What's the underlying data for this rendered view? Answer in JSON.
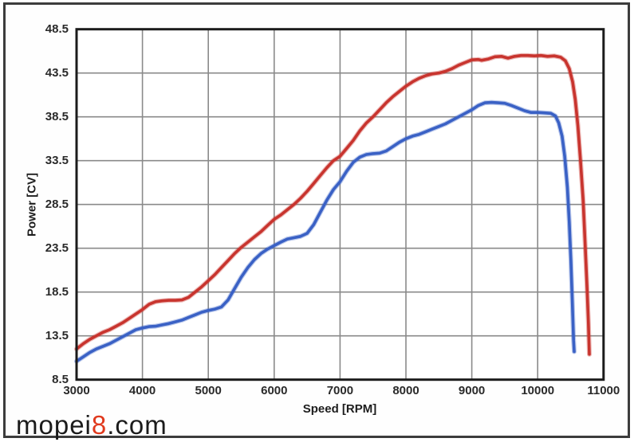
{
  "watermark": {
    "prefix": "mopei",
    "highlight": "8",
    "suffix": ".com",
    "highlight_color": "#e0391d",
    "text_color": "#1b1b1b"
  },
  "colors": {
    "grid": "#8a8a8a",
    "plot_border": "#1b1b1b",
    "outer_frame": "#3c3c3c",
    "background": "#ffffff",
    "red_series": "#c8342e",
    "blue_series": "#3a61c5"
  },
  "chart_data": {
    "type": "line",
    "title": "",
    "xlabel": "Speed [RPM]",
    "ylabel": "Power [CV]",
    "xlim": [
      3000,
      11000
    ],
    "ylim": [
      8.5,
      48.5
    ],
    "x_ticks": [
      3000,
      4000,
      5000,
      6000,
      7000,
      8000,
      9000,
      10000,
      11000
    ],
    "y_ticks": [
      8.5,
      13.5,
      18.5,
      23.5,
      28.5,
      33.5,
      38.5,
      43.5,
      48.5
    ],
    "grid": true,
    "legend_position": "none",
    "series": [
      {
        "name": "power-red",
        "color": "#c8342e",
        "peak": {
          "rpm": 9900,
          "cv": 45.5
        },
        "points": [
          [
            3000,
            12.0
          ],
          [
            3100,
            12.6
          ],
          [
            3200,
            13.1
          ],
          [
            3300,
            13.5
          ],
          [
            3400,
            13.9
          ],
          [
            3500,
            14.2
          ],
          [
            3600,
            14.6
          ],
          [
            3700,
            15.0
          ],
          [
            3800,
            15.5
          ],
          [
            3900,
            16.0
          ],
          [
            4000,
            16.5
          ],
          [
            4100,
            17.1
          ],
          [
            4200,
            17.4
          ],
          [
            4300,
            17.5
          ],
          [
            4400,
            17.55
          ],
          [
            4500,
            17.55
          ],
          [
            4600,
            17.6
          ],
          [
            4700,
            17.9
          ],
          [
            4800,
            18.5
          ],
          [
            4900,
            19.1
          ],
          [
            5000,
            19.8
          ],
          [
            5100,
            20.5
          ],
          [
            5200,
            21.3
          ],
          [
            5300,
            22.1
          ],
          [
            5400,
            22.9
          ],
          [
            5500,
            23.6
          ],
          [
            5600,
            24.2
          ],
          [
            5700,
            24.8
          ],
          [
            5800,
            25.4
          ],
          [
            5900,
            26.1
          ],
          [
            6000,
            26.8
          ],
          [
            6100,
            27.3
          ],
          [
            6200,
            27.9
          ],
          [
            6300,
            28.5
          ],
          [
            6400,
            29.2
          ],
          [
            6500,
            30.0
          ],
          [
            6600,
            30.9
          ],
          [
            6700,
            31.8
          ],
          [
            6800,
            32.7
          ],
          [
            6900,
            33.5
          ],
          [
            7000,
            34.0
          ],
          [
            7100,
            34.9
          ],
          [
            7200,
            35.8
          ],
          [
            7300,
            36.9
          ],
          [
            7400,
            37.8
          ],
          [
            7500,
            38.5
          ],
          [
            7600,
            39.3
          ],
          [
            7700,
            40.1
          ],
          [
            7800,
            40.8
          ],
          [
            7900,
            41.4
          ],
          [
            8000,
            42.0
          ],
          [
            8100,
            42.5
          ],
          [
            8200,
            42.9
          ],
          [
            8300,
            43.2
          ],
          [
            8400,
            43.4
          ],
          [
            8500,
            43.5
          ],
          [
            8600,
            43.7
          ],
          [
            8700,
            44.0
          ],
          [
            8800,
            44.4
          ],
          [
            8900,
            44.7
          ],
          [
            9000,
            45.0
          ],
          [
            9100,
            45.05
          ],
          [
            9150,
            44.95
          ],
          [
            9250,
            45.1
          ],
          [
            9350,
            45.35
          ],
          [
            9450,
            45.4
          ],
          [
            9550,
            45.2
          ],
          [
            9650,
            45.4
          ],
          [
            9750,
            45.5
          ],
          [
            9850,
            45.5
          ],
          [
            9950,
            45.45
          ],
          [
            10050,
            45.5
          ],
          [
            10150,
            45.4
          ],
          [
            10250,
            45.45
          ],
          [
            10350,
            45.3
          ],
          [
            10420,
            44.9
          ],
          [
            10480,
            44.0
          ],
          [
            10530,
            42.5
          ],
          [
            10570,
            40.5
          ],
          [
            10610,
            37.5
          ],
          [
            10650,
            33.5
          ],
          [
            10690,
            29.0
          ],
          [
            10720,
            24.0
          ],
          [
            10750,
            19.0
          ],
          [
            10770,
            15.0
          ],
          [
            10785,
            11.4
          ]
        ]
      },
      {
        "name": "power-blue",
        "color": "#3a61c5",
        "peak": {
          "rpm": 9300,
          "cv": 40.1
        },
        "points": [
          [
            3000,
            10.6
          ],
          [
            3100,
            11.1
          ],
          [
            3200,
            11.6
          ],
          [
            3300,
            12.0
          ],
          [
            3400,
            12.3
          ],
          [
            3500,
            12.6
          ],
          [
            3600,
            13.0
          ],
          [
            3700,
            13.4
          ],
          [
            3800,
            13.8
          ],
          [
            3900,
            14.2
          ],
          [
            4000,
            14.4
          ],
          [
            4100,
            14.55
          ],
          [
            4200,
            14.6
          ],
          [
            4300,
            14.75
          ],
          [
            4400,
            14.9
          ],
          [
            4500,
            15.1
          ],
          [
            4600,
            15.3
          ],
          [
            4700,
            15.6
          ],
          [
            4800,
            15.9
          ],
          [
            4900,
            16.2
          ],
          [
            5000,
            16.4
          ],
          [
            5100,
            16.55
          ],
          [
            5200,
            16.8
          ],
          [
            5300,
            17.6
          ],
          [
            5400,
            18.9
          ],
          [
            5500,
            20.2
          ],
          [
            5600,
            21.3
          ],
          [
            5700,
            22.2
          ],
          [
            5800,
            22.9
          ],
          [
            5900,
            23.4
          ],
          [
            6000,
            23.8
          ],
          [
            6100,
            24.2
          ],
          [
            6200,
            24.55
          ],
          [
            6300,
            24.7
          ],
          [
            6400,
            24.85
          ],
          [
            6500,
            25.2
          ],
          [
            6600,
            26.2
          ],
          [
            6700,
            27.6
          ],
          [
            6800,
            29.0
          ],
          [
            6900,
            30.2
          ],
          [
            7000,
            31.1
          ],
          [
            7100,
            32.3
          ],
          [
            7200,
            33.3
          ],
          [
            7300,
            33.9
          ],
          [
            7400,
            34.2
          ],
          [
            7500,
            34.3
          ],
          [
            7600,
            34.35
          ],
          [
            7700,
            34.6
          ],
          [
            7800,
            35.1
          ],
          [
            7900,
            35.6
          ],
          [
            8000,
            36.0
          ],
          [
            8100,
            36.3
          ],
          [
            8200,
            36.5
          ],
          [
            8300,
            36.8
          ],
          [
            8400,
            37.1
          ],
          [
            8500,
            37.4
          ],
          [
            8600,
            37.7
          ],
          [
            8700,
            38.1
          ],
          [
            8800,
            38.5
          ],
          [
            8900,
            38.9
          ],
          [
            9000,
            39.3
          ],
          [
            9100,
            39.8
          ],
          [
            9200,
            40.1
          ],
          [
            9300,
            40.15
          ],
          [
            9400,
            40.1
          ],
          [
            9500,
            40.05
          ],
          [
            9600,
            39.8
          ],
          [
            9700,
            39.5
          ],
          [
            9800,
            39.2
          ],
          [
            9900,
            39.0
          ],
          [
            10000,
            39.0
          ],
          [
            10100,
            38.95
          ],
          [
            10200,
            38.9
          ],
          [
            10270,
            38.6
          ],
          [
            10320,
            37.8
          ],
          [
            10370,
            36.3
          ],
          [
            10410,
            34.0
          ],
          [
            10450,
            30.5
          ],
          [
            10480,
            26.5
          ],
          [
            10505,
            22.0
          ],
          [
            10525,
            17.5
          ],
          [
            10545,
            13.0
          ],
          [
            10555,
            11.7
          ]
        ]
      }
    ]
  }
}
